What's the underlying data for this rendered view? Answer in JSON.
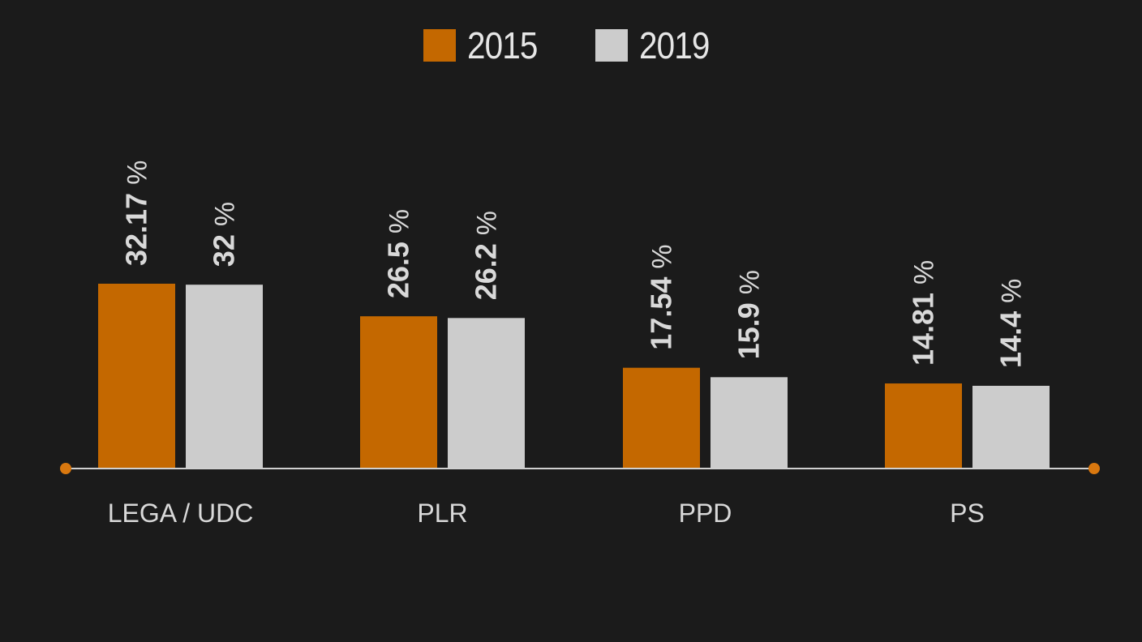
{
  "chart_data": {
    "type": "bar",
    "categories": [
      "LEGA / UDC",
      "PLR",
      "PPD",
      "PS"
    ],
    "series": [
      {
        "name": "2015",
        "values": [
          32.17,
          26.5,
          17.54,
          14.81
        ],
        "color": "#c46800",
        "labels": [
          "32.17 %",
          "26.5 %",
          "17.54 %",
          "14.81 %"
        ]
      },
      {
        "name": "2019",
        "values": [
          32,
          26.2,
          15.9,
          14.4
        ],
        "color": "#cccccc",
        "labels": [
          "32 %",
          "26.2 %",
          "15.9 %",
          "14.4 %"
        ]
      }
    ],
    "value_unit": "%",
    "ylim": [
      0,
      32.17
    ],
    "legend_position": "top-center",
    "axis_color": "#d0d0d0",
    "axis_endpoint_color": "#d9780f",
    "background": "#1b1b1b",
    "grid": false
  }
}
